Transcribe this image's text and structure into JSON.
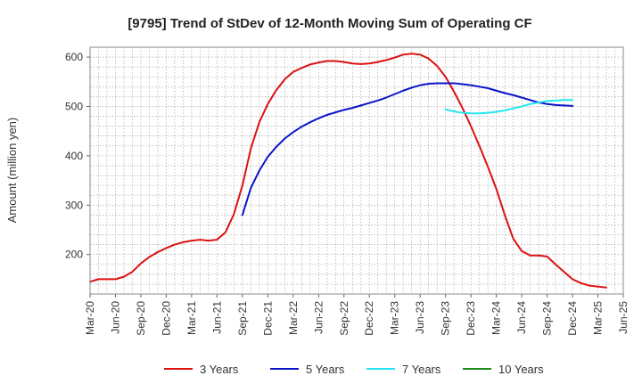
{
  "chart_data": {
    "type": "line",
    "title": "[9795]  Trend of StDev of 12-Month Moving Sum of Operating CF",
    "ylabel": "Amount (million yen)",
    "xlabel": "",
    "ylim": [
      120,
      620
    ],
    "yticks": [
      200,
      300,
      400,
      500,
      600
    ],
    "xticks": [
      "Mar-20",
      "Jun-20",
      "Sep-20",
      "Dec-20",
      "Mar-21",
      "Jun-21",
      "Sep-21",
      "Dec-21",
      "Mar-22",
      "Jun-22",
      "Sep-22",
      "Dec-22",
      "Mar-23",
      "Jun-23",
      "Sep-23",
      "Dec-23",
      "Mar-24",
      "Jun-24",
      "Sep-24",
      "Dec-24",
      "Mar-25",
      "Jun-25"
    ],
    "x_range_months": [
      0,
      63
    ],
    "grid": true,
    "legend_position": "bottom",
    "series": [
      {
        "name": "3 Years",
        "color": "#dd1111",
        "start_month": 0,
        "values": [
          145,
          150,
          150,
          150,
          155,
          165,
          182,
          195,
          205,
          213,
          220,
          225,
          228,
          230,
          228,
          230,
          245,
          282,
          340,
          415,
          468,
          505,
          533,
          555,
          570,
          578,
          585,
          589,
          592,
          592,
          590,
          587,
          586,
          587,
          590,
          594,
          599,
          605,
          607,
          605,
          597,
          582,
          560,
          530,
          497,
          460,
          420,
          378,
          333,
          280,
          232,
          207,
          198,
          198,
          196,
          180,
          165,
          150,
          142,
          137,
          135,
          133
        ]
      },
      {
        "name": "5 Years",
        "color": "#0a14c8",
        "start_month": 18,
        "values": [
          280,
          335,
          370,
          398,
          418,
          435,
          448,
          459,
          468,
          476,
          483,
          488,
          493,
          497,
          502,
          507,
          512,
          518,
          525,
          532,
          538,
          543,
          546,
          547,
          547,
          547,
          545,
          543,
          540,
          537,
          532,
          527,
          523,
          518,
          513,
          508,
          505,
          503,
          502,
          501
        ]
      },
      {
        "name": "7 Years",
        "color": "#22e6f0",
        "start_month": 42,
        "values": [
          494,
          490,
          487,
          486,
          486,
          487,
          489,
          492,
          496,
          500,
          505,
          508,
          511,
          512,
          513,
          513
        ]
      },
      {
        "name": "10 Years",
        "color": "#1a8a1a",
        "start_month": 0,
        "values": []
      }
    ]
  }
}
